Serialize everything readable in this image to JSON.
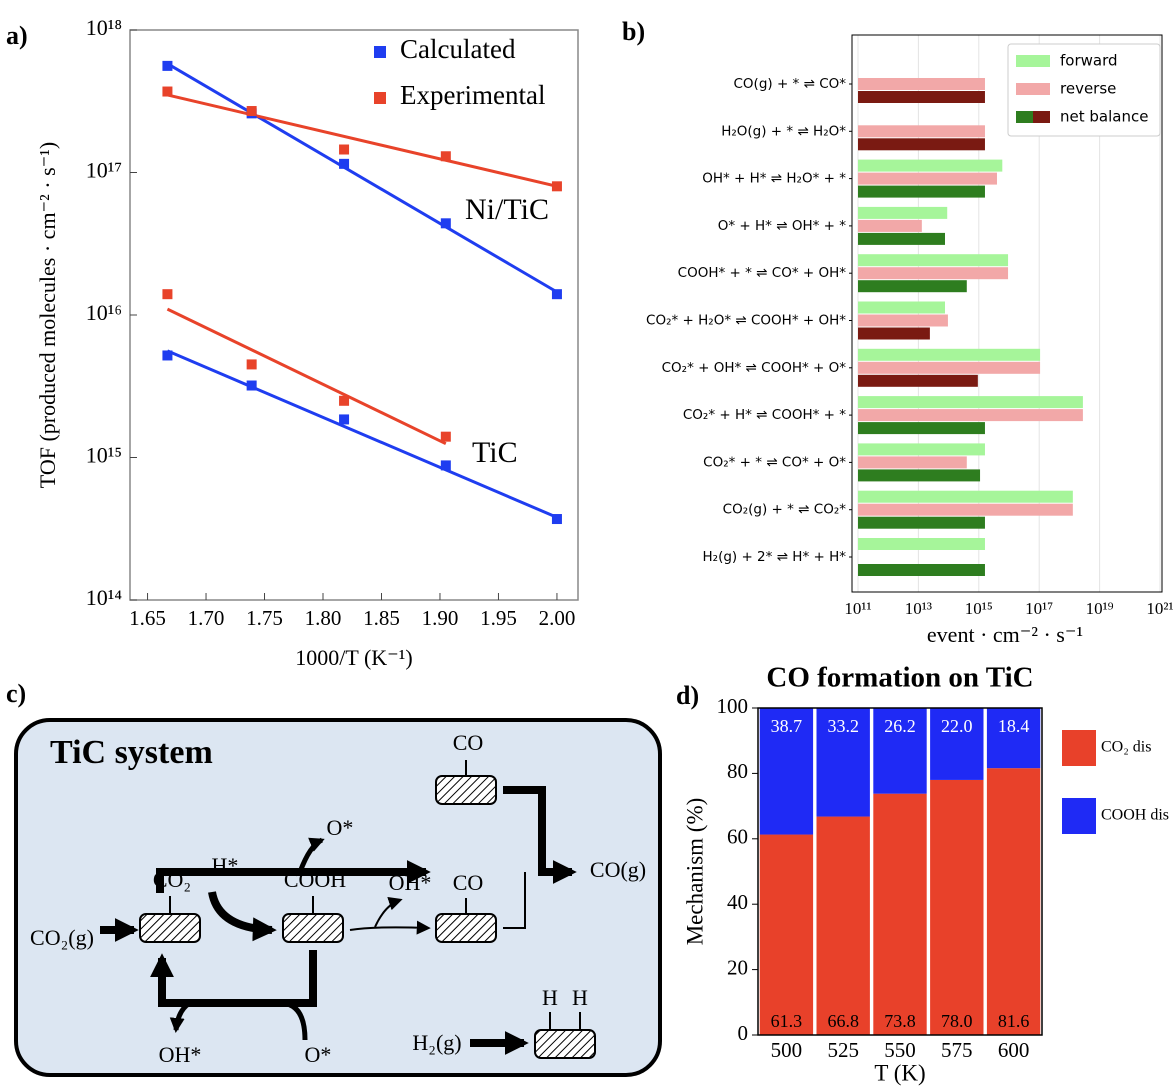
{
  "chart_data": [
    {
      "type": "scatter",
      "label": "a)",
      "log_y": true,
      "ylabel": "TOF (produced molecules · cm⁻² · s⁻¹)",
      "xlabel": "1000/T (K⁻¹)",
      "xlim": [
        1.635,
        2.018
      ],
      "xticks": [
        1.65,
        {
          "value": 1.7,
          "label": "1.70"
        },
        1.75,
        {
          "value": 1.8,
          "label": "1.80"
        },
        1.85,
        {
          "value": 1.9,
          "label": "1.90"
        },
        1.95,
        {
          "value": 2.0,
          "label": "2.00"
        }
      ],
      "ylim": [
        100000000000000.0,
        1e+18
      ],
      "yticks": [
        {
          "value": 100000000000000.0,
          "label": "10¹⁴"
        },
        {
          "value": 1000000000000000.0,
          "label": "10¹⁵"
        },
        {
          "value": 1e+16,
          "label": "10¹⁶"
        },
        {
          "value": 1e+17,
          "label": "10¹⁷"
        },
        {
          "value": 1e+18,
          "label": "10¹⁸"
        }
      ],
      "legend": "upper right",
      "annotations": [
        "Ni/TiC",
        "TiC"
      ],
      "series": [
        {
          "name": "Calculated",
          "color": "#1f3df0",
          "x": [
            1.667,
            1.739,
            1.818,
            1.905,
            2.0,
            1.667,
            1.739,
            1.818,
            1.905,
            2.0
          ],
          "values": [
            5.6e+17,
            2.6e+17,
            1.15e+17,
            4.4e+16,
            1.4e+16,
            5200000000000000.0,
            3200000000000000.0,
            1850000000000000.0,
            880000000000000.0,
            370000000000000.0
          ]
        },
        {
          "name": "Experimental",
          "color": "#e8432a",
          "x": [
            1.667,
            1.739,
            1.818,
            1.905,
            2.0,
            1.667,
            1.739,
            1.818,
            1.905
          ],
          "values": [
            3.7e+17,
            2.7e+17,
            1.45e+17,
            1.3e+17,
            8e+16,
            1.4e+16,
            4500000000000000.0,
            2500000000000000.0,
            1400000000000000.0
          ]
        }
      ],
      "fits": [
        {
          "color": "#1f3df0",
          "x": [
            1.667,
            2.0
          ],
          "values": [
            5.8e+17,
            1.45e+16
          ]
        },
        {
          "color": "#e8432a",
          "x": [
            1.667,
            2.0
          ],
          "values": [
            3.5e+17,
            8e+16
          ]
        },
        {
          "color": "#1f3df0",
          "x": [
            1.667,
            2.0
          ],
          "values": [
            5600000000000000.0,
            380000000000000.0
          ]
        },
        {
          "color": "#e8432a",
          "x": [
            1.667,
            1.905
          ],
          "values": [
            1.1e+16,
            1250000000000000.0
          ]
        }
      ]
    },
    {
      "type": "barh",
      "label": "b)",
      "log_x": true,
      "grid": true,
      "legend": "upper right",
      "xlabel": "event · cm⁻² · s⁻¹",
      "xlim": [
        100000000000.0,
        1e+21
      ],
      "xticks": [
        {
          "value": 100000000000.0,
          "label": "10¹¹"
        },
        {
          "value": 10000000000000.0,
          "label": "10¹³"
        },
        {
          "value": 1000000000000000.0,
          "label": "10¹⁵"
        },
        {
          "value": 1e+17,
          "label": "10¹⁷"
        },
        {
          "value": 1e+19,
          "label": "10¹⁹"
        },
        {
          "value": 1e+21,
          "label": "10²¹"
        }
      ],
      "categories": [
        "CO(g) + * ⇌ CO*",
        "H₂O(g) + * ⇌ H₂O*",
        "OH* + H* ⇌ H₂O* + *",
        "O* + H* ⇌ OH* + *",
        "COOH* + * ⇌ CO* + OH*",
        "CO₂* + H₂O* ⇌ COOH* + OH*",
        "CO₂* + OH* ⇌ COOH* + O*",
        "CO₂* + H* ⇌ COOH* + *",
        "CO₂* + * ⇌ CO* + O*",
        "CO₂(g) + * ⇌ CO₂*",
        "H₂(g) + 2* ⇌ H* + H*"
      ],
      "series": [
        {
          "name": "forward",
          "color": "#a6f59a",
          "values": [
            null,
            null,
            6000000000000000.0,
            90000000000000.0,
            9300000000000000.0,
            76000000000000.0,
            1.07e+17,
            2.8e+18,
            1600000000000000.0,
            1.3e+18,
            1600000000000000.0
          ]
        },
        {
          "name": "reverse",
          "color": "#f2a8a8",
          "values": [
            1600000000000000.0,
            1600000000000000.0,
            4000000000000000.0,
            13000000000000.0,
            9300000000000000.0,
            95000000000000.0,
            1.07e+17,
            2.8e+18,
            400000000000000.0,
            1.3e+18,
            null
          ]
        },
        {
          "name": "net balance",
          "colors": [
            "#7a1a12",
            "#7a1a12",
            "#2e7d1f",
            "#2e7d1f",
            "#2e7d1f",
            "#7a1a12",
            "#7a1a12",
            "#2e7d1f",
            "#2e7d1f",
            "#2e7d1f",
            "#2e7d1f"
          ],
          "values": [
            1600000000000000.0,
            1600000000000000.0,
            1600000000000000.0,
            76000000000000.0,
            400000000000000.0,
            24000000000000.0,
            930000000000000.0,
            1600000000000000.0,
            1100000000000000.0,
            1600000000000000.0,
            1600000000000000.0
          ]
        }
      ]
    },
    {
      "type": "bar",
      "stacked": true,
      "label": "d)",
      "title": "CO formation on TiC",
      "ylabel": "Mechanism (%)",
      "xlabel": "T (K)",
      "legend": "right",
      "categories": [
        500,
        525,
        550,
        575,
        600
      ],
      "ylim": [
        0,
        100
      ],
      "yticks": [
        0,
        20,
        40,
        60,
        80,
        100
      ],
      "series": [
        {
          "name": "CO₂ dis",
          "color": "#e8412a",
          "values": [
            61.3,
            66.8,
            73.8,
            78.0,
            81.6
          ],
          "value_labels": [
            "61.3",
            "66.8",
            "73.8",
            "78.0",
            "81.6"
          ]
        },
        {
          "name": "COOH dis",
          "color": "#1f2af5",
          "values": [
            38.7,
            33.2,
            26.2,
            22.0,
            18.4
          ],
          "value_labels": [
            "38.7",
            "33.2",
            "26.2",
            "22.0",
            "18.4"
          ]
        }
      ]
    }
  ],
  "diagram": {
    "label": "c)",
    "title": "TiC system",
    "nodes": [
      "CO₂(g)",
      "CO₂",
      "H*",
      "COOH",
      "OH*",
      "CO",
      "O*",
      "CO",
      "CO(g)",
      "OH*",
      "O*",
      "H₂(g)",
      "H",
      "H"
    ]
  }
}
